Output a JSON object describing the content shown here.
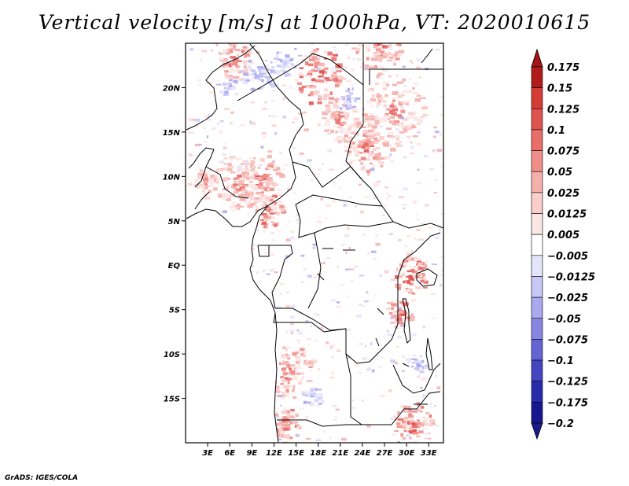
{
  "title": "Vertical velocity [m/s] at 1000hPa, VT: 2020010615",
  "credit": "GrADS: IGES/COLA",
  "map": {
    "lon_range": [
      0,
      35
    ],
    "lat_range": [
      -20,
      25
    ],
    "lat_ticks": [
      {
        "value": 20,
        "label": "20N"
      },
      {
        "value": 15,
        "label": "15N"
      },
      {
        "value": 10,
        "label": "10N"
      },
      {
        "value": 5,
        "label": "5N"
      },
      {
        "value": 0,
        "label": "EQ"
      },
      {
        "value": -5,
        "label": "5S"
      },
      {
        "value": -10,
        "label": "10S"
      },
      {
        "value": -15,
        "label": "15S"
      }
    ],
    "lon_ticks": [
      {
        "value": 3,
        "label": "3E"
      },
      {
        "value": 6,
        "label": "6E"
      },
      {
        "value": 9,
        "label": "9E"
      },
      {
        "value": 12,
        "label": "12E"
      },
      {
        "value": 15,
        "label": "15E"
      },
      {
        "value": 18,
        "label": "18E"
      },
      {
        "value": 21,
        "label": "21E"
      },
      {
        "value": 24,
        "label": "24E"
      },
      {
        "value": 27,
        "label": "27E"
      },
      {
        "value": 30,
        "label": "30E"
      },
      {
        "value": 33,
        "label": "33E"
      }
    ]
  },
  "colorbar": {
    "levels": [
      {
        "label": "0.175",
        "color": "#b01c1c"
      },
      {
        "label": "0.15",
        "color": "#c42a28"
      },
      {
        "label": "0.125",
        "color": "#d43c36"
      },
      {
        "label": "0.1",
        "color": "#e05450"
      },
      {
        "label": "0.075",
        "color": "#e86e6a"
      },
      {
        "label": "0.05",
        "color": "#ef8e8a"
      },
      {
        "label": "0.025",
        "color": "#f5b0ac"
      },
      {
        "label": "0.0125",
        "color": "#f9cecb"
      },
      {
        "label": "0.005",
        "color": "#fce6e4"
      },
      {
        "label": "-0.005",
        "color": "#ffffff"
      },
      {
        "label": "-0.0125",
        "color": "#e4e4fc"
      },
      {
        "label": "-0.025",
        "color": "#c8c8f6"
      },
      {
        "label": "-0.05",
        "color": "#a9a9ee"
      },
      {
        "label": "-0.075",
        "color": "#8787e2"
      },
      {
        "label": "-0.1",
        "color": "#6464d2"
      },
      {
        "label": "-0.125",
        "color": "#4444c0"
      },
      {
        "label": "-0.175",
        "color": "#2a2aac"
      },
      {
        "label": "-0.2",
        "color": "#16168f"
      }
    ],
    "top_color": "#a51515",
    "bottom_color": "#1a1a8a"
  }
}
